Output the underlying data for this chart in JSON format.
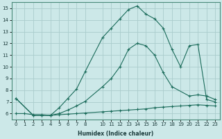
{
  "xlabel": "Humidex (Indice chaleur)",
  "ylabel": "",
  "background_color": "#cce8e8",
  "grid_color": "#aacccc",
  "line_color": "#1a6b5a",
  "xlim": [
    -0.5,
    23.5
  ],
  "ylim": [
    5.5,
    15.5
  ],
  "xticks": [
    0,
    1,
    2,
    3,
    4,
    5,
    6,
    7,
    8,
    10,
    11,
    12,
    13,
    14,
    15,
    16,
    17,
    18,
    19,
    20,
    21,
    22,
    23
  ],
  "yticks": [
    6,
    7,
    8,
    9,
    10,
    11,
    12,
    13,
    14,
    15
  ],
  "line1_x": [
    0,
    1,
    2,
    3,
    4,
    5,
    6,
    7,
    8,
    10,
    11,
    12,
    13,
    14,
    15,
    16,
    17,
    18,
    19,
    20,
    21,
    22,
    23
  ],
  "line1_y": [
    6.0,
    6.0,
    5.9,
    5.9,
    5.85,
    5.9,
    5.95,
    6.0,
    6.05,
    6.15,
    6.2,
    6.25,
    6.3,
    6.35,
    6.4,
    6.5,
    6.55,
    6.6,
    6.65,
    6.7,
    6.75,
    6.7,
    6.65
  ],
  "line2_x": [
    0,
    2,
    3,
    4,
    5,
    6,
    7,
    8,
    10,
    11,
    12,
    13,
    14,
    15,
    16,
    17,
    18,
    20,
    21,
    22,
    23
  ],
  "line2_y": [
    7.3,
    5.85,
    5.85,
    5.85,
    6.0,
    6.3,
    6.65,
    7.05,
    8.3,
    9.0,
    10.0,
    11.5,
    12.0,
    11.8,
    11.0,
    9.5,
    8.3,
    7.5,
    7.6,
    7.5,
    7.2
  ],
  "line3_x": [
    0,
    2,
    3,
    4,
    5,
    6,
    7,
    8,
    10,
    11,
    12,
    13,
    14,
    15,
    16,
    17,
    18,
    19,
    20,
    21,
    22,
    23
  ],
  "line3_y": [
    7.3,
    5.85,
    5.85,
    5.85,
    6.5,
    7.3,
    8.1,
    9.6,
    12.5,
    13.3,
    14.1,
    14.9,
    15.2,
    14.5,
    14.1,
    13.3,
    11.5,
    10.0,
    11.8,
    11.9,
    7.2,
    7.0
  ]
}
